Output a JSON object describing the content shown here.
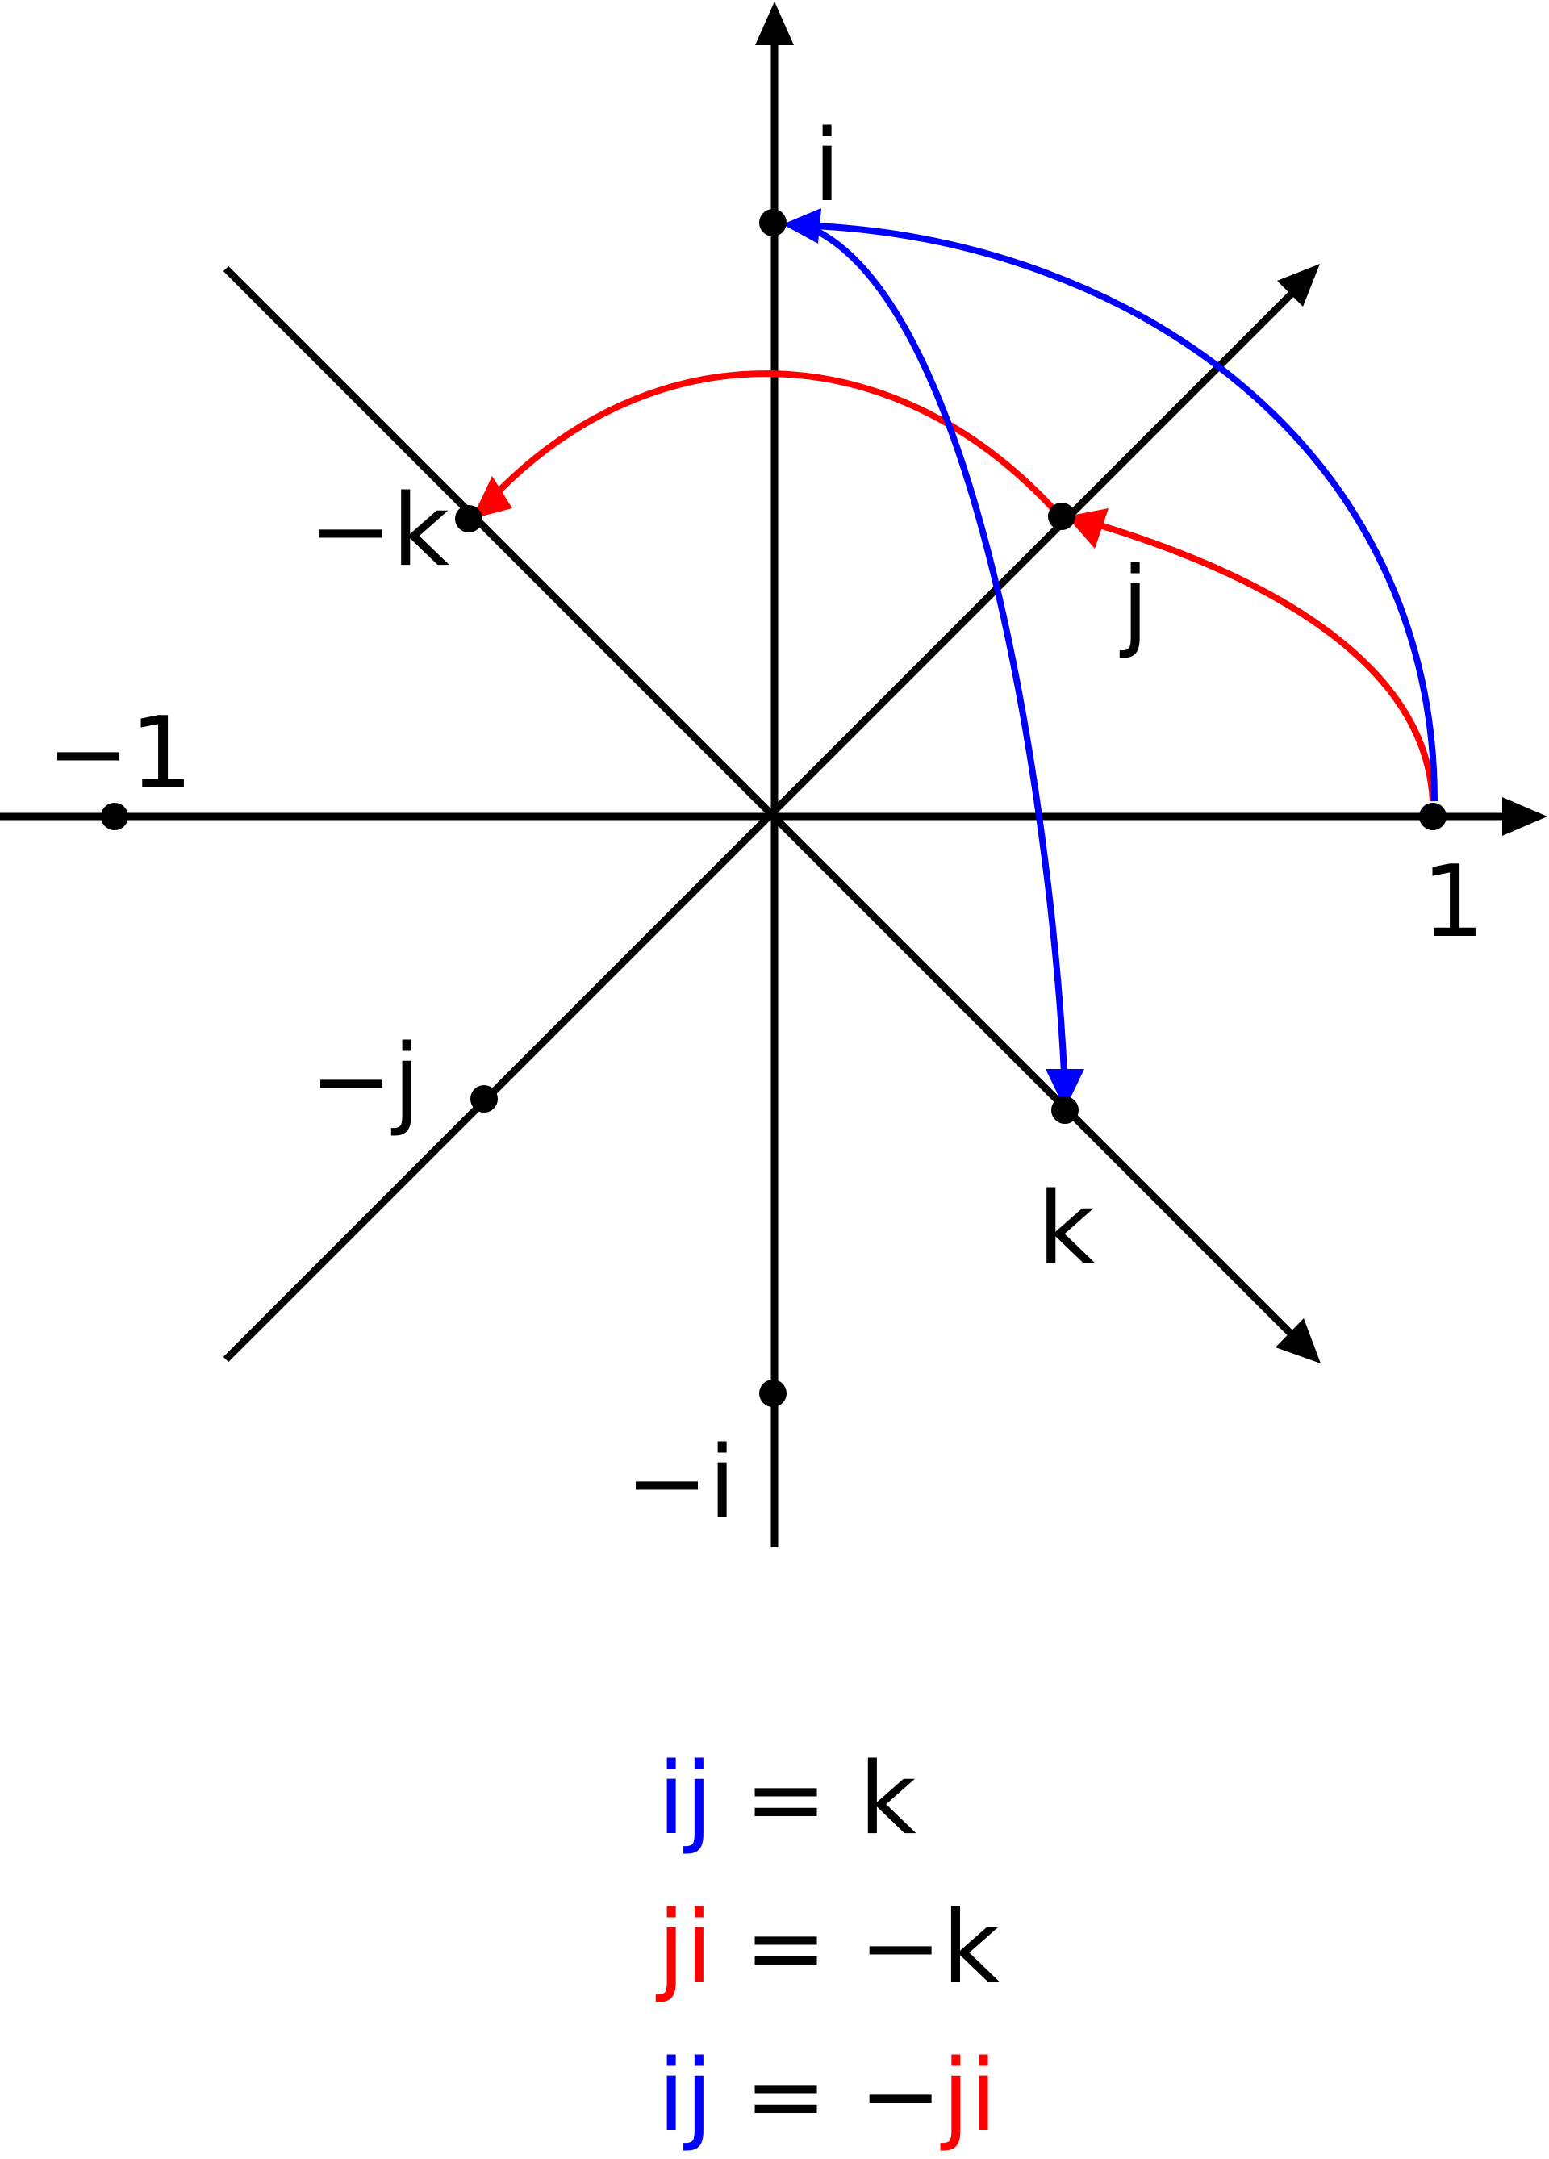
{
  "colors": {
    "blue": "#0000ff",
    "red": "#ff0000",
    "axis": "#000000"
  },
  "points": {
    "one": "1",
    "neg_one": "−1",
    "i": "i",
    "neg_i": "−i",
    "j": "j",
    "neg_j": "−j",
    "k": "k",
    "neg_k": "−k"
  },
  "equations": [
    {
      "lhs_a": "i",
      "lhs_b": "j",
      "eq": " = ",
      "rhs_sign": "",
      "rhs_a": "k",
      "rhs_b": "",
      "lhs_color": "blue",
      "rhs_color": "black"
    },
    {
      "lhs_a": "j",
      "lhs_b": "i",
      "eq": " = ",
      "rhs_sign": "−",
      "rhs_a": "k",
      "rhs_b": "",
      "lhs_color": "red",
      "rhs_color": "black"
    },
    {
      "lhs_a": "i",
      "lhs_b": "j",
      "eq": " = ",
      "rhs_sign": "−",
      "rhs_a": "j",
      "rhs_b": "i",
      "lhs_color": "blue",
      "rhs_color": "red"
    }
  ],
  "eq1_text": "ij = k",
  "eq2_text": "ji = −k",
  "eq3_text": "ij = −ji"
}
